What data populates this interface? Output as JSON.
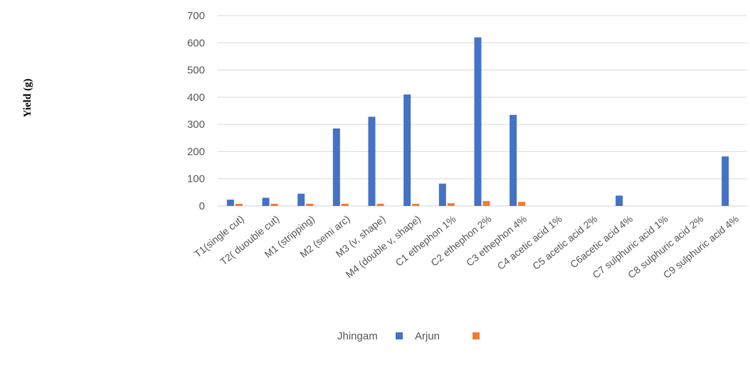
{
  "chart_data": {
    "type": "bar",
    "title": "",
    "xlabel": "",
    "ylabel": "Yield (g)",
    "ylim": [
      0,
      700
    ],
    "yticks": [
      0,
      100,
      200,
      300,
      400,
      500,
      600,
      700
    ],
    "grid": true,
    "legend_position": "bottom",
    "categories": [
      "T1(single cut)",
      "T2( duouble cut)",
      "M1 (stripping)",
      "M2 (semi arc)",
      "M3 (v, shape)",
      "M4 (double v, shape)",
      "C1 ethephon 1%",
      "C2 ethephon 2%",
      "C3 ethephon 4%",
      "C4 acetic acid 1%",
      "C5 acetic acid 2%",
      "C6acetic acid 4%",
      "C7 sulphuric acid 1%",
      "C8 sulphuric acid 2%",
      "C9 sulphuric acid 4%"
    ],
    "series": [
      {
        "name": "Jhingam",
        "color": "#4472C4",
        "values": [
          23,
          30,
          45,
          285,
          328,
          410,
          82,
          620,
          335,
          0,
          0,
          38,
          0,
          0,
          182
        ]
      },
      {
        "name": "Arjun",
        "color": "#ED7D31",
        "values": [
          8,
          8,
          8,
          8,
          8,
          8,
          10,
          18,
          15,
          0,
          0,
          0,
          0,
          0,
          0
        ]
      }
    ]
  }
}
